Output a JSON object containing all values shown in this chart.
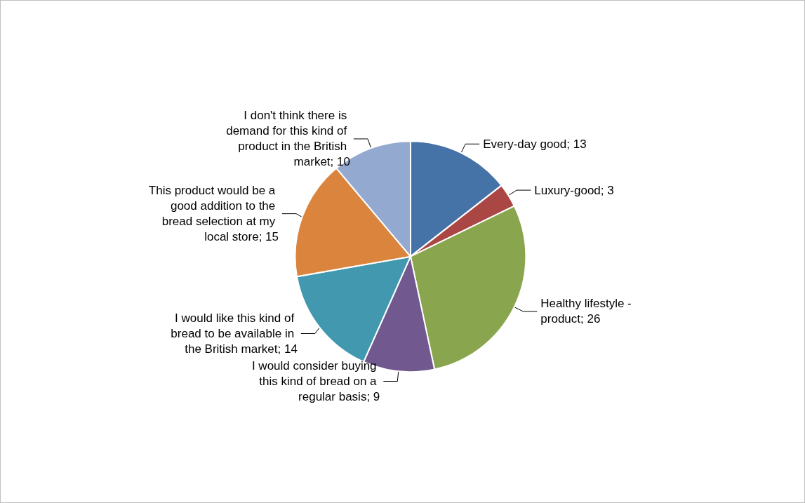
{
  "chart_data": {
    "type": "pie",
    "categories": [
      "Every-day good; 13",
      "Luxury-good; 3",
      "Healthy lifestyle - product; 26",
      "I would consider buying this kind of bread on a regular basis; 9",
      "I would like this kind of bread to be available in the British market; 14",
      "This product would be a good addition to the bread selection at my local store; 15",
      "I don't think there is demand for this kind of product in the British market; 10"
    ],
    "values": [
      13,
      3,
      26,
      9,
      14,
      15,
      10
    ],
    "colors": [
      "#4572a7",
      "#aa4643",
      "#89a54e",
      "#71588f",
      "#4198af",
      "#db843d",
      "#93a9cf"
    ],
    "legend": false
  }
}
